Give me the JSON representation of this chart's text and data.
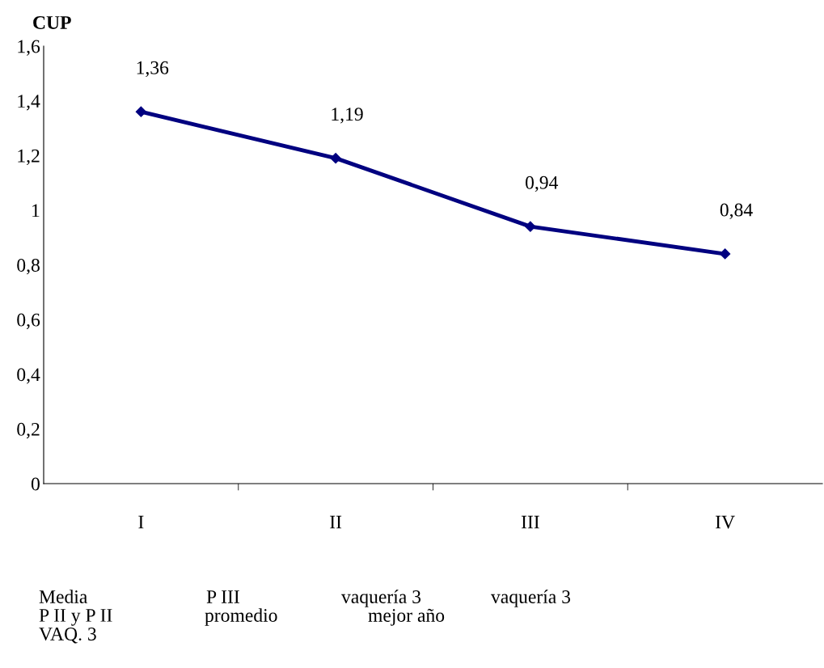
{
  "chart_data": {
    "type": "line",
    "ylabel": "CUP",
    "categories": [
      "I",
      "II",
      "III",
      "IV"
    ],
    "series": [
      {
        "color": "#000080",
        "values": [
          1.36,
          1.19,
          0.94,
          0.84
        ]
      }
    ],
    "ylim": [
      0,
      1.6
    ],
    "yticks": [
      0,
      {
        "value": 0.2,
        "label": "0,2"
      },
      {
        "value": 0.4,
        "label": "0,4"
      },
      {
        "value": 0.6,
        "label": "0,6"
      },
      {
        "value": 0.8,
        "label": "0,8"
      },
      1,
      {
        "value": 1.2,
        "label": "1,2"
      },
      {
        "value": 1.4,
        "label": "1,4"
      },
      {
        "value": 1.6,
        "label": "1,6"
      }
    ],
    "value_labels": [
      "1,36",
      "1,19",
      "0,94",
      "0,84"
    ],
    "marker": "diamond",
    "line_style": "solid",
    "grid": false,
    "legend": false,
    "annotations": [
      "Media",
      "P III",
      "vaquería 3",
      "vaquería 3",
      "P II y P II",
      "promedio",
      "mejor año",
      "VAQ. 3"
    ]
  }
}
